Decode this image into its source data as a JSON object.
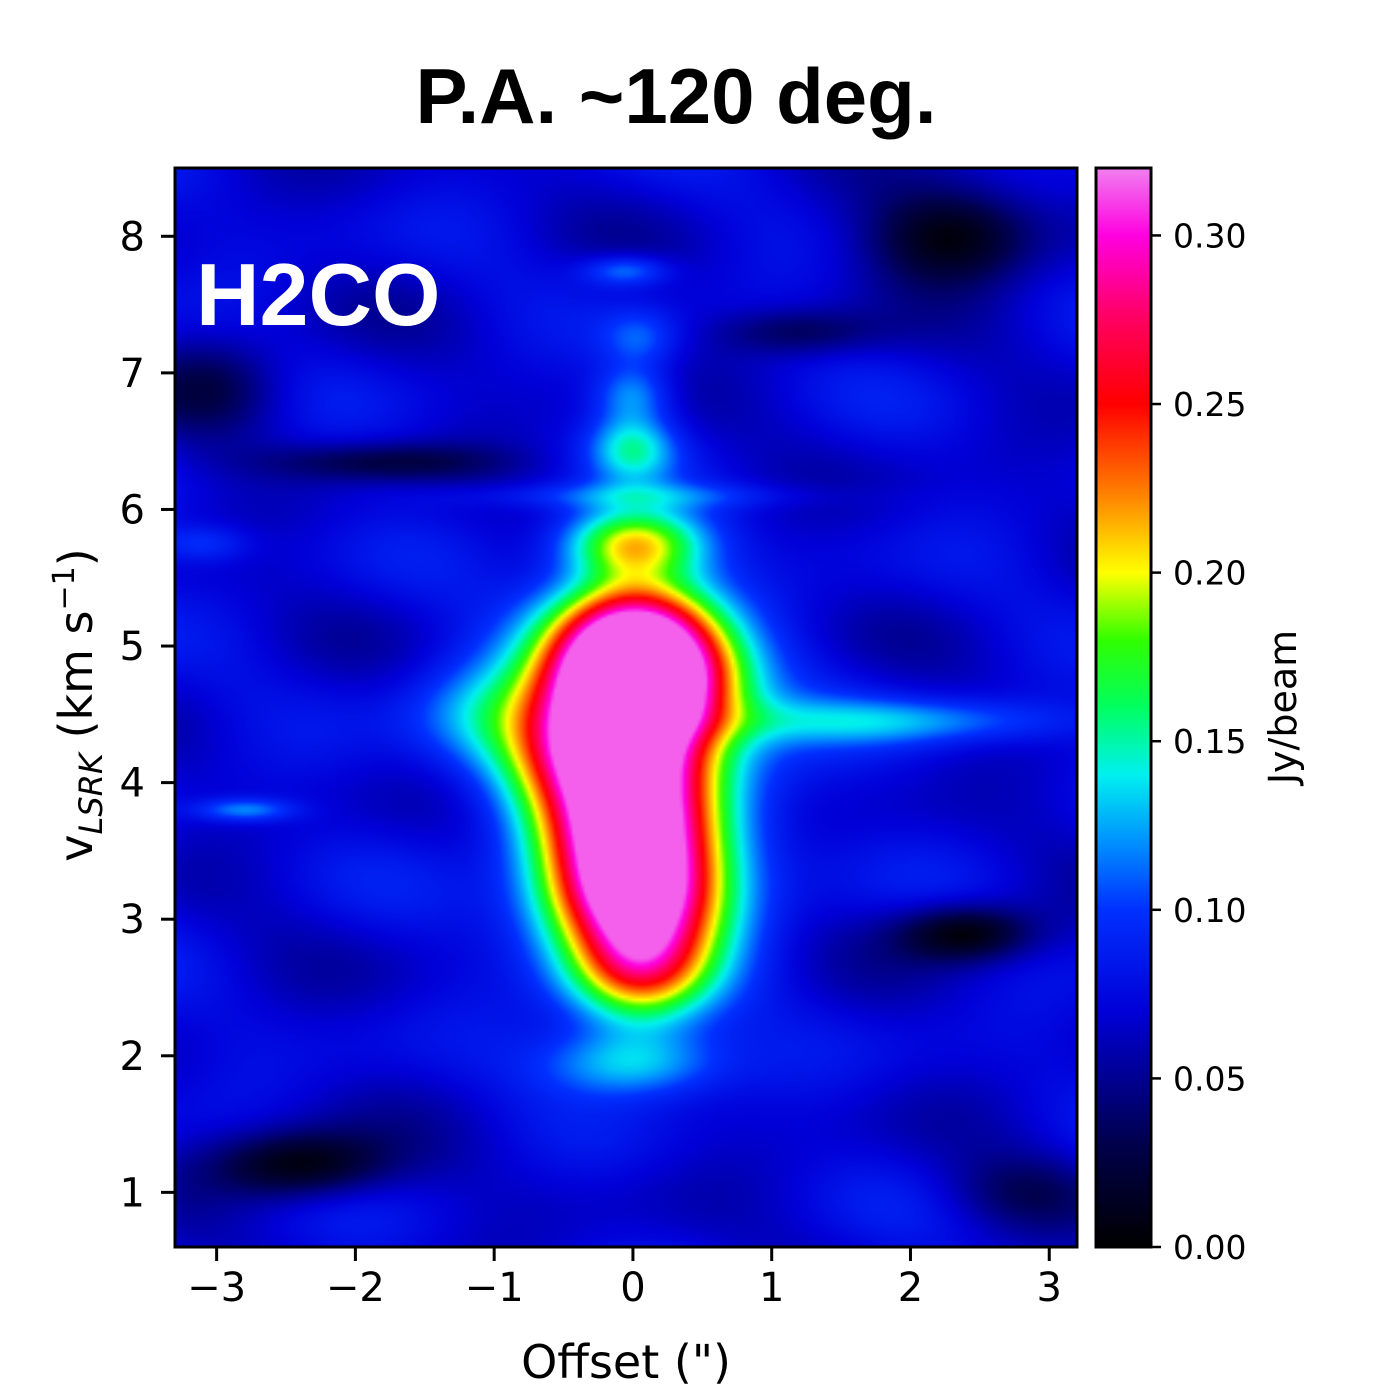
{
  "chart_data": {
    "type": "heatmap",
    "title": "P.A. ~120 deg.",
    "annotation": "H2CO",
    "xlabel": "Offset (\")",
    "ylabel": {
      "main": "v",
      "subscript": "LSRK",
      "unit_open": " (km s",
      "unit_sup": "−1",
      "unit_close": ")"
    },
    "xlim": [
      -3.3,
      3.2
    ],
    "ylim": [
      0.6,
      8.5
    ],
    "xticks": [
      {
        "value": -3,
        "label": "−3"
      },
      {
        "value": -2,
        "label": "−2"
      },
      {
        "value": -1,
        "label": "−1"
      },
      {
        "value": 0,
        "label": "0"
      },
      {
        "value": 1,
        "label": "1"
      },
      {
        "value": 2,
        "label": "2"
      },
      {
        "value": 3,
        "label": "3"
      }
    ],
    "yticks": [
      {
        "value": 1,
        "label": "1"
      },
      {
        "value": 2,
        "label": "2"
      },
      {
        "value": 3,
        "label": "3"
      },
      {
        "value": 4,
        "label": "4"
      },
      {
        "value": 5,
        "label": "5"
      },
      {
        "value": 6,
        "label": "6"
      },
      {
        "value": 7,
        "label": "7"
      },
      {
        "value": 8,
        "label": "8"
      }
    ],
    "colorbar": {
      "label": "Jy/beam",
      "range": [
        0.0,
        0.32
      ],
      "ticks": [
        {
          "value": 0.0,
          "label": "0.00"
        },
        {
          "value": 0.05,
          "label": "0.05"
        },
        {
          "value": 0.1,
          "label": "0.10"
        },
        {
          "value": 0.15,
          "label": "0.15"
        },
        {
          "value": 0.2,
          "label": "0.20"
        },
        {
          "value": 0.25,
          "label": "0.25"
        },
        {
          "value": 0.3,
          "label": "0.30"
        }
      ],
      "colormap": "gist_ncar-like",
      "stops": [
        {
          "v": 0.0,
          "color": "#000000"
        },
        {
          "v": 0.03,
          "color": "#00004a"
        },
        {
          "v": 0.07,
          "color": "#0000d8"
        },
        {
          "v": 0.1,
          "color": "#0030ff"
        },
        {
          "v": 0.12,
          "color": "#0090ff"
        },
        {
          "v": 0.14,
          "color": "#00f0f0"
        },
        {
          "v": 0.16,
          "color": "#00ff60"
        },
        {
          "v": 0.18,
          "color": "#30ff00"
        },
        {
          "v": 0.2,
          "color": "#ffff00"
        },
        {
          "v": 0.225,
          "color": "#ff7800"
        },
        {
          "v": 0.25,
          "color": "#ff0000"
        },
        {
          "v": 0.275,
          "color": "#ff0060"
        },
        {
          "v": 0.3,
          "color": "#ff00e0"
        },
        {
          "v": 0.32,
          "color": "#f080f0"
        }
      ]
    },
    "peak_intensity": 0.315,
    "background_intensity": 0.07,
    "main_ridge": {
      "offset_center": 0.0,
      "velocity_range": [
        1.8,
        6.0
      ],
      "peak_velocity": 5.0
    },
    "emission_components": [
      {
        "x": 0.0,
        "y": 5.05,
        "amp": 0.235,
        "sx": 0.4,
        "sy": 0.32
      },
      {
        "x": 0.05,
        "y": 4.7,
        "amp": 0.23,
        "sx": 0.42,
        "sy": 0.28
      },
      {
        "x": -0.15,
        "y": 4.25,
        "amp": 0.21,
        "sx": 0.45,
        "sy": 0.3
      },
      {
        "x": -0.05,
        "y": 3.7,
        "amp": 0.2,
        "sx": 0.4,
        "sy": 0.32
      },
      {
        "x": 0.0,
        "y": 3.2,
        "amp": 0.21,
        "sx": 0.42,
        "sy": 0.3
      },
      {
        "x": 0.05,
        "y": 2.65,
        "amp": 0.15,
        "sx": 0.35,
        "sy": 0.3
      },
      {
        "x": 0.0,
        "y": 5.75,
        "amp": 0.13,
        "sx": 0.35,
        "sy": 0.18
      },
      {
        "x": -0.1,
        "y": 4.5,
        "amp": 0.07,
        "sx": 0.75,
        "sy": 0.45
      },
      {
        "x": 0.1,
        "y": 3.4,
        "amp": 0.06,
        "sx": 0.6,
        "sy": 0.6
      },
      {
        "x": 0.0,
        "y": 1.95,
        "amp": 0.07,
        "sx": 0.45,
        "sy": 0.18
      },
      {
        "x": 0.0,
        "y": 6.45,
        "amp": 0.07,
        "sx": 0.22,
        "sy": 0.18
      },
      {
        "x": 0.0,
        "y": 6.85,
        "amp": 0.05,
        "sx": 0.2,
        "sy": 0.15
      },
      {
        "x": 0.05,
        "y": 7.25,
        "amp": 0.035,
        "sx": 0.2,
        "sy": 0.15
      },
      {
        "x": -0.05,
        "y": 7.75,
        "amp": 0.05,
        "sx": 0.22,
        "sy": 0.08
      },
      {
        "x": 1.9,
        "y": 4.45,
        "amp": 0.05,
        "sx": 0.9,
        "sy": 0.12
      },
      {
        "x": -1.1,
        "y": 4.5,
        "amp": 0.03,
        "sx": 0.35,
        "sy": 0.25
      },
      {
        "x": -2.8,
        "y": 3.8,
        "amp": 0.05,
        "sx": 0.25,
        "sy": 0.06
      },
      {
        "x": -3.1,
        "y": 5.75,
        "amp": 0.03,
        "sx": 0.25,
        "sy": 0.1
      },
      {
        "x": 0.0,
        "y": 6.1,
        "amp": 0.03,
        "sx": 0.9,
        "sy": 0.07
      }
    ],
    "absorption_dips": [
      {
        "x": 2.3,
        "y": 8.0,
        "amp": 0.07,
        "sx": 0.45,
        "sy": 0.25
      },
      {
        "x": 2.4,
        "y": 2.9,
        "amp": 0.07,
        "sx": 0.35,
        "sy": 0.15
      },
      {
        "x": -2.4,
        "y": 1.2,
        "amp": 0.07,
        "sx": 0.45,
        "sy": 0.18
      },
      {
        "x": -1.8,
        "y": 6.35,
        "amp": 0.04,
        "sx": 0.6,
        "sy": 0.1
      },
      {
        "x": 1.2,
        "y": 7.3,
        "amp": 0.035,
        "sx": 0.4,
        "sy": 0.12
      },
      {
        "x": -3.0,
        "y": 6.9,
        "amp": 0.035,
        "sx": 0.35,
        "sy": 0.25
      },
      {
        "x": 2.8,
        "y": 1.0,
        "amp": 0.03,
        "sx": 0.4,
        "sy": 0.2
      }
    ]
  }
}
